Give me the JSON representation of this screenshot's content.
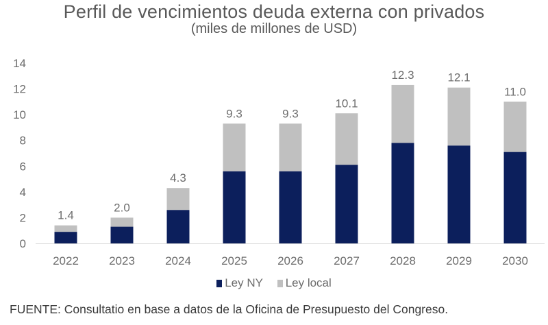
{
  "chart_data": {
    "type": "bar",
    "stacked": true,
    "title": "Perfil de vencimientos deuda externa con privados",
    "subtitle": "(miles de millones de USD)",
    "xlabel": "",
    "ylabel": "",
    "ylim": [
      0,
      14
    ],
    "yticks": [
      0,
      2,
      4,
      6,
      8,
      10,
      12,
      14
    ],
    "grid": false,
    "categories": [
      "2022",
      "2023",
      "2024",
      "2025",
      "2026",
      "2027",
      "2028",
      "2029",
      "2030"
    ],
    "series": [
      {
        "name": "Ley NY",
        "color": "#0c1f5c",
        "values": [
          0.9,
          1.3,
          2.6,
          5.6,
          5.6,
          6.1,
          7.8,
          7.6,
          7.1
        ]
      },
      {
        "name": "Ley local",
        "color": "#c0c0c0",
        "values": [
          0.5,
          0.7,
          1.7,
          3.7,
          3.7,
          4.0,
          4.5,
          4.5,
          3.9
        ]
      }
    ],
    "totals": [
      "1.4",
      "2.0",
      "4.3",
      "9.3",
      "9.3",
      "10.1",
      "12.3",
      "12.1",
      "11.0"
    ],
    "legend_position": "bottom-center",
    "source": "FUENTE: Consultatio en base a datos de la Oficina de Presupuesto del Congreso."
  }
}
